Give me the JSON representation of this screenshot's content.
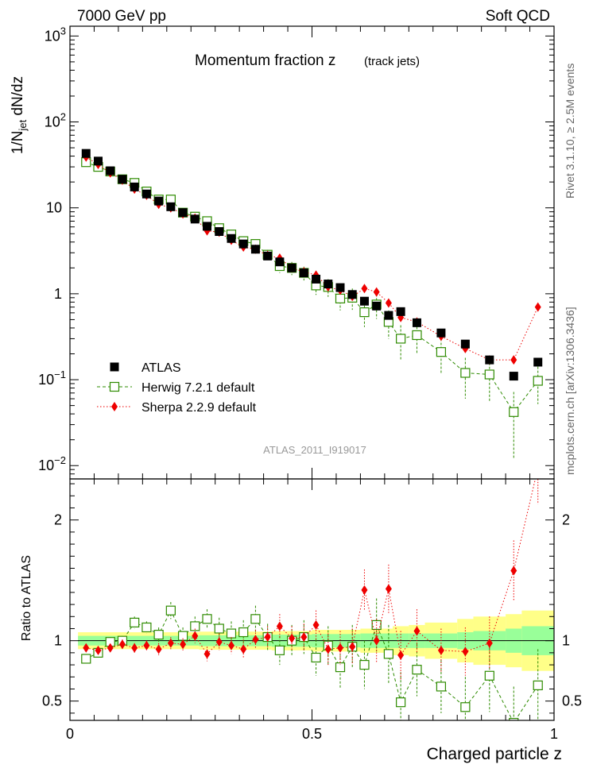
{
  "header": {
    "left": "7000 GeV pp",
    "right": "Soft QCD"
  },
  "side_labels": {
    "rivet": "Rivet 3.1.10, ≥ 2.5M events",
    "mcplots": "mcplots.cern.ch [arXiv:1306.3436]"
  },
  "analysis_id": "ATLAS_2011_I919017",
  "colors": {
    "atlas": "#000000",
    "herwig": "#2e8b00",
    "sherpa": "#ee0000",
    "band_stat": "#99ff99",
    "band_total": "#ffff88"
  },
  "chart_data": [
    {
      "type": "scatter",
      "title": "Momentum fraction z",
      "subtitle": "(track jets)",
      "ylabel_main": "1/N",
      "ylabel_sub": "jet",
      "ylabel_tail": " dN/dz",
      "yscale": "log",
      "ylim": [
        0.007,
        1300
      ],
      "xlim": [
        0,
        1
      ],
      "y_ticks": [
        {
          "v": 1000,
          "base": "10",
          "exp": "3"
        },
        {
          "v": 100,
          "base": "10",
          "exp": "2"
        },
        {
          "v": 10,
          "base": "10",
          "exp": ""
        },
        {
          "v": 1,
          "base": "1",
          "exp": ""
        },
        {
          "v": 0.1,
          "base": "10",
          "exp": "−1"
        },
        {
          "v": 0.01,
          "base": "10",
          "exp": "−2"
        }
      ],
      "legend": [
        {
          "key": "atlas",
          "label": "ATLAS"
        },
        {
          "key": "herwig",
          "label": "Herwig 7.2.1 default"
        },
        {
          "key": "sherpa",
          "label": "Sherpa 2.2.9 default"
        }
      ],
      "x": [
        0.0333,
        0.0583,
        0.0833,
        0.1083,
        0.1333,
        0.1583,
        0.1833,
        0.2083,
        0.2333,
        0.2583,
        0.2833,
        0.3083,
        0.3333,
        0.3583,
        0.3833,
        0.4083,
        0.4333,
        0.4583,
        0.4833,
        0.5083,
        0.5333,
        0.5583,
        0.5833,
        0.6083,
        0.6333,
        0.6583,
        0.6833,
        0.7167,
        0.7667,
        0.8167,
        0.8667,
        0.9167,
        0.9667
      ],
      "series": [
        {
          "key": "atlas",
          "name": "ATLAS",
          "values": [
            43,
            35,
            27,
            21.5,
            17.5,
            14.5,
            12,
            10.3,
            8.8,
            7.4,
            6.1,
            5.3,
            4.4,
            3.8,
            3.3,
            2.75,
            2.35,
            2.0,
            1.75,
            1.48,
            1.3,
            1.18,
            0.98,
            0.82,
            0.72,
            0.56,
            0.62,
            0.46,
            0.35,
            0.26,
            0.17,
            0.11,
            0.16
          ]
        },
        {
          "key": "herwig",
          "name": "Herwig 7.2.1 default",
          "values": [
            34,
            30,
            26.5,
            21.5,
            19.5,
            15.5,
            12.5,
            12.5,
            8.8,
            7.9,
            7.0,
            5.8,
            4.9,
            4.1,
            3.8,
            2.85,
            2.1,
            2.0,
            1.75,
            1.25,
            1.2,
            0.88,
            0.9,
            0.61,
            0.75,
            0.47,
            0.3,
            0.33,
            0.21,
            0.12,
            0.115,
            0.042,
            0.097
          ],
          "errors_low": [
            2.5,
            2,
            1.5,
            1.2,
            1.1,
            1,
            0.9,
            0.9,
            0.7,
            0.7,
            0.7,
            0.6,
            0.5,
            0.5,
            0.45,
            0.4,
            0.35,
            0.35,
            0.32,
            0.28,
            0.28,
            0.24,
            0.25,
            0.2,
            0.24,
            0.17,
            0.13,
            0.13,
            0.09,
            0.06,
            0.06,
            0.03,
            0.045
          ],
          "errors_high": [
            2.5,
            2,
            1.5,
            1.2,
            1.1,
            1,
            0.9,
            0.9,
            0.7,
            0.7,
            0.7,
            0.6,
            0.5,
            0.5,
            0.45,
            0.4,
            0.35,
            0.35,
            0.32,
            0.28,
            0.28,
            0.24,
            0.25,
            0.2,
            0.24,
            0.17,
            0.13,
            0.13,
            0.09,
            0.06,
            0.06,
            0.03,
            0.045
          ]
        },
        {
          "key": "sherpa",
          "name": "Sherpa 2.2.9 default",
          "values": [
            39,
            32,
            25.5,
            21,
            16.5,
            14,
            11,
            10,
            8.5,
            7.6,
            5.4,
            5.2,
            4.2,
            3.5,
            3.3,
            2.8,
            2.6,
            2.0,
            1.8,
            1.65,
            1.2,
            1.1,
            0.93,
            1.15,
            1.05,
            0.78,
            0.53,
            0.47,
            0.32,
            0.23,
            0.17,
            0.17,
            0.7
          ]
        }
      ]
    },
    {
      "type": "scatter",
      "ylabel": "Ratio to ATLAS",
      "xlabel": "Charged particle z",
      "ylim": [
        0.34,
        2.34
      ],
      "xlim": [
        0,
        1
      ],
      "y_ticks": [
        "0.5",
        "1",
        "2"
      ],
      "x_ticks": [
        "0",
        "0.5",
        "1"
      ],
      "reference_line": 1,
      "band_edges": [
        0.0167,
        0.2667,
        0.4167,
        0.5,
        0.6,
        0.6667,
        0.7,
        0.7333,
        0.8,
        0.8333,
        0.9,
        0.9333,
        1.0
      ],
      "band_stat": [
        0.04,
        0.045,
        0.05,
        0.055,
        0.06,
        0.06,
        0.06,
        0.06,
        0.07,
        0.08,
        0.1,
        0.12
      ],
      "band_total": [
        0.07,
        0.075,
        0.08,
        0.09,
        0.1,
        0.12,
        0.13,
        0.15,
        0.18,
        0.2,
        0.22,
        0.25
      ],
      "series": [
        {
          "key": "herwig",
          "name": "Herwig 7.2.1 default",
          "values": [
            0.85,
            0.9,
            0.99,
            1.0,
            1.15,
            1.11,
            1.05,
            1.25,
            1.04,
            1.12,
            1.18,
            1.1,
            1.06,
            1.07,
            1.18,
            1.03,
            0.92,
            1.0,
            1.03,
            0.86,
            0.96,
            0.78,
            0.95,
            0.8,
            1.13,
            0.89,
            0.49,
            0.76,
            0.62,
            0.45,
            0.71,
            0.32,
            0.63
          ],
          "errors_low": [
            0.03,
            0.03,
            0.04,
            0.04,
            0.05,
            0.05,
            0.06,
            0.07,
            0.07,
            0.08,
            0.08,
            0.09,
            0.1,
            0.1,
            0.11,
            0.11,
            0.12,
            0.13,
            0.14,
            0.15,
            0.16,
            0.18,
            0.18,
            0.2,
            0.22,
            0.24,
            0.25,
            0.22,
            0.22,
            0.25,
            0.3,
            0.3,
            0.3
          ],
          "errors_high": [
            0.03,
            0.03,
            0.04,
            0.04,
            0.05,
            0.05,
            0.06,
            0.07,
            0.07,
            0.08,
            0.08,
            0.09,
            0.1,
            0.1,
            0.11,
            0.11,
            0.12,
            0.13,
            0.14,
            0.15,
            0.16,
            0.18,
            0.18,
            0.2,
            0.22,
            0.24,
            0.25,
            0.22,
            0.22,
            0.25,
            0.3,
            0.3,
            0.3
          ]
        },
        {
          "key": "sherpa",
          "name": "Sherpa 2.2.9 default",
          "values": [
            0.94,
            0.92,
            0.94,
            0.97,
            0.94,
            0.96,
            0.93,
            0.98,
            0.97,
            1.04,
            0.89,
            0.99,
            0.96,
            0.93,
            1.01,
            1.03,
            1.12,
            1.02,
            1.03,
            1.13,
            0.93,
            0.94,
            0.95,
            1.42,
            1.0,
            1.43,
            0.88,
            1.08,
            0.92,
            0.91,
            0.98,
            1.58,
            2.43
          ],
          "errors_low": [
            0.03,
            0.03,
            0.03,
            0.04,
            0.04,
            0.04,
            0.05,
            0.05,
            0.05,
            0.06,
            0.06,
            0.07,
            0.07,
            0.08,
            0.08,
            0.09,
            0.1,
            0.1,
            0.11,
            0.12,
            0.13,
            0.14,
            0.15,
            0.17,
            0.18,
            0.2,
            0.2,
            0.18,
            0.18,
            0.2,
            0.22,
            0.25,
            0.3
          ],
          "errors_high": [
            0.03,
            0.03,
            0.03,
            0.04,
            0.04,
            0.04,
            0.05,
            0.05,
            0.05,
            0.06,
            0.06,
            0.07,
            0.07,
            0.08,
            0.08,
            0.09,
            0.1,
            0.1,
            0.11,
            0.12,
            0.13,
            0.14,
            0.15,
            0.17,
            0.18,
            0.2,
            0.2,
            0.18,
            0.18,
            0.2,
            0.22,
            0.25,
            0.3
          ]
        }
      ]
    }
  ]
}
